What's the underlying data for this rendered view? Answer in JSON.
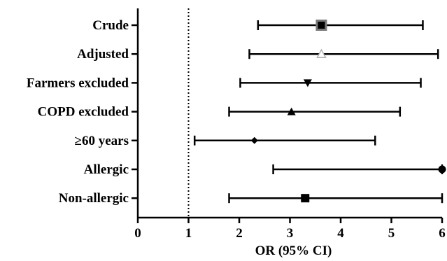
{
  "chart_data": {
    "type": "forest",
    "xlabel": "OR (95% CI)",
    "xlim": [
      0,
      6
    ],
    "xticks": [
      0,
      1,
      2,
      3,
      4,
      5,
      6
    ],
    "reference_line": 1,
    "rows": [
      {
        "label": "Crude",
        "or": 3.62,
        "ci_low": 2.37,
        "ci_high": 5.62,
        "marker": "square-boxed"
      },
      {
        "label": "Adjusted",
        "or": 3.62,
        "ci_low": 2.2,
        "ci_high": 5.92,
        "marker": "triangle-open"
      },
      {
        "label": "Farmers excluded",
        "or": 3.35,
        "ci_low": 2.02,
        "ci_high": 5.58,
        "marker": "triangle-down"
      },
      {
        "label": "COPD excluded",
        "or": 3.03,
        "ci_low": 1.8,
        "ci_high": 5.17,
        "marker": "triangle-up"
      },
      {
        "label": "≥60 years",
        "or": 2.3,
        "ci_low": 1.12,
        "ci_high": 4.68,
        "marker": "diamond"
      },
      {
        "label": "Allergic",
        "or": 6.0,
        "ci_low": 2.67,
        "ci_high": 6.0,
        "marker": "circle"
      },
      {
        "label": "Non-allergic",
        "or": 3.3,
        "ci_low": 1.8,
        "ci_high": 6.0,
        "marker": "square"
      }
    ]
  }
}
